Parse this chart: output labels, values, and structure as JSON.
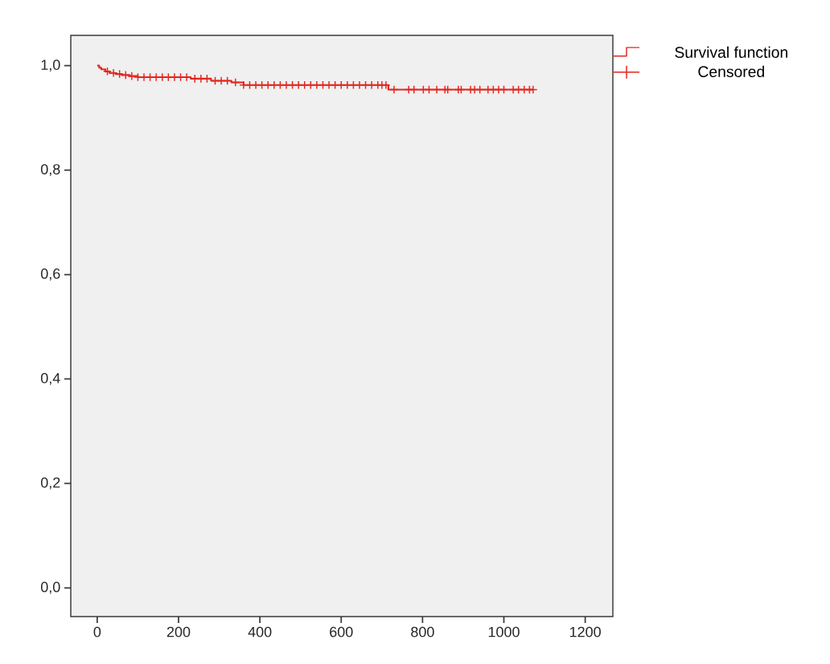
{
  "chart_data": {
    "type": "step",
    "xlim": [
      -65,
      1268
    ],
    "ylim": [
      -0.055,
      1.058
    ],
    "xticks": [
      0,
      200,
      400,
      600,
      800,
      1000,
      1200
    ],
    "yticks": [
      {
        "value": 0,
        "label": "0,0"
      },
      {
        "value": 0.2,
        "label": "0,2"
      },
      {
        "value": 0.4,
        "label": "0,4"
      },
      {
        "value": 0.6,
        "label": "0,6"
      },
      {
        "value": 0.8,
        "label": "0,8"
      },
      {
        "value": 1.0,
        "label": "1,0"
      }
    ],
    "legend": "top right",
    "series": [
      {
        "name": "Survival function",
        "color": "#e3261f",
        "marker": "none",
        "x": [
          0,
          5,
          10,
          20,
          30,
          45,
          60,
          80,
          100,
          230,
          280,
          330,
          360,
          716,
          1072
        ],
        "values": [
          1.0,
          0.996,
          0.993,
          0.989,
          0.986,
          0.984,
          0.982,
          0.98,
          0.978,
          0.975,
          0.971,
          0.968,
          0.963,
          0.954,
          0.954
        ]
      },
      {
        "name": "Censored",
        "type": "scatter",
        "color": "#e3261f",
        "marker": "cross",
        "x": [
          25,
          40,
          55,
          70,
          85,
          100,
          115,
          130,
          145,
          160,
          175,
          190,
          205,
          220,
          240,
          255,
          270,
          290,
          305,
          320,
          340,
          360,
          375,
          390,
          405,
          420,
          435,
          450,
          465,
          480,
          495,
          510,
          525,
          540,
          555,
          570,
          585,
          600,
          615,
          630,
          645,
          660,
          675,
          690,
          700,
          710,
          730,
          766,
          779,
          802,
          816,
          835,
          855,
          862,
          888,
          895,
          918,
          928,
          941,
          961,
          974,
          987,
          1000,
          1023,
          1036,
          1050,
          1063,
          1072
        ],
        "values": [
          0.989,
          0.986,
          0.984,
          0.982,
          0.98,
          0.978,
          0.978,
          0.978,
          0.978,
          0.978,
          0.978,
          0.978,
          0.978,
          0.978,
          0.975,
          0.975,
          0.975,
          0.971,
          0.971,
          0.971,
          0.968,
          0.963,
          0.963,
          0.963,
          0.963,
          0.963,
          0.963,
          0.963,
          0.963,
          0.963,
          0.963,
          0.963,
          0.963,
          0.963,
          0.963,
          0.963,
          0.963,
          0.963,
          0.963,
          0.963,
          0.963,
          0.963,
          0.963,
          0.963,
          0.963,
          0.963,
          0.954,
          0.954,
          0.954,
          0.954,
          0.954,
          0.954,
          0.954,
          0.954,
          0.954,
          0.954,
          0.954,
          0.954,
          0.954,
          0.954,
          0.954,
          0.954,
          0.954,
          0.954,
          0.954,
          0.954,
          0.954,
          0.954
        ]
      }
    ]
  }
}
